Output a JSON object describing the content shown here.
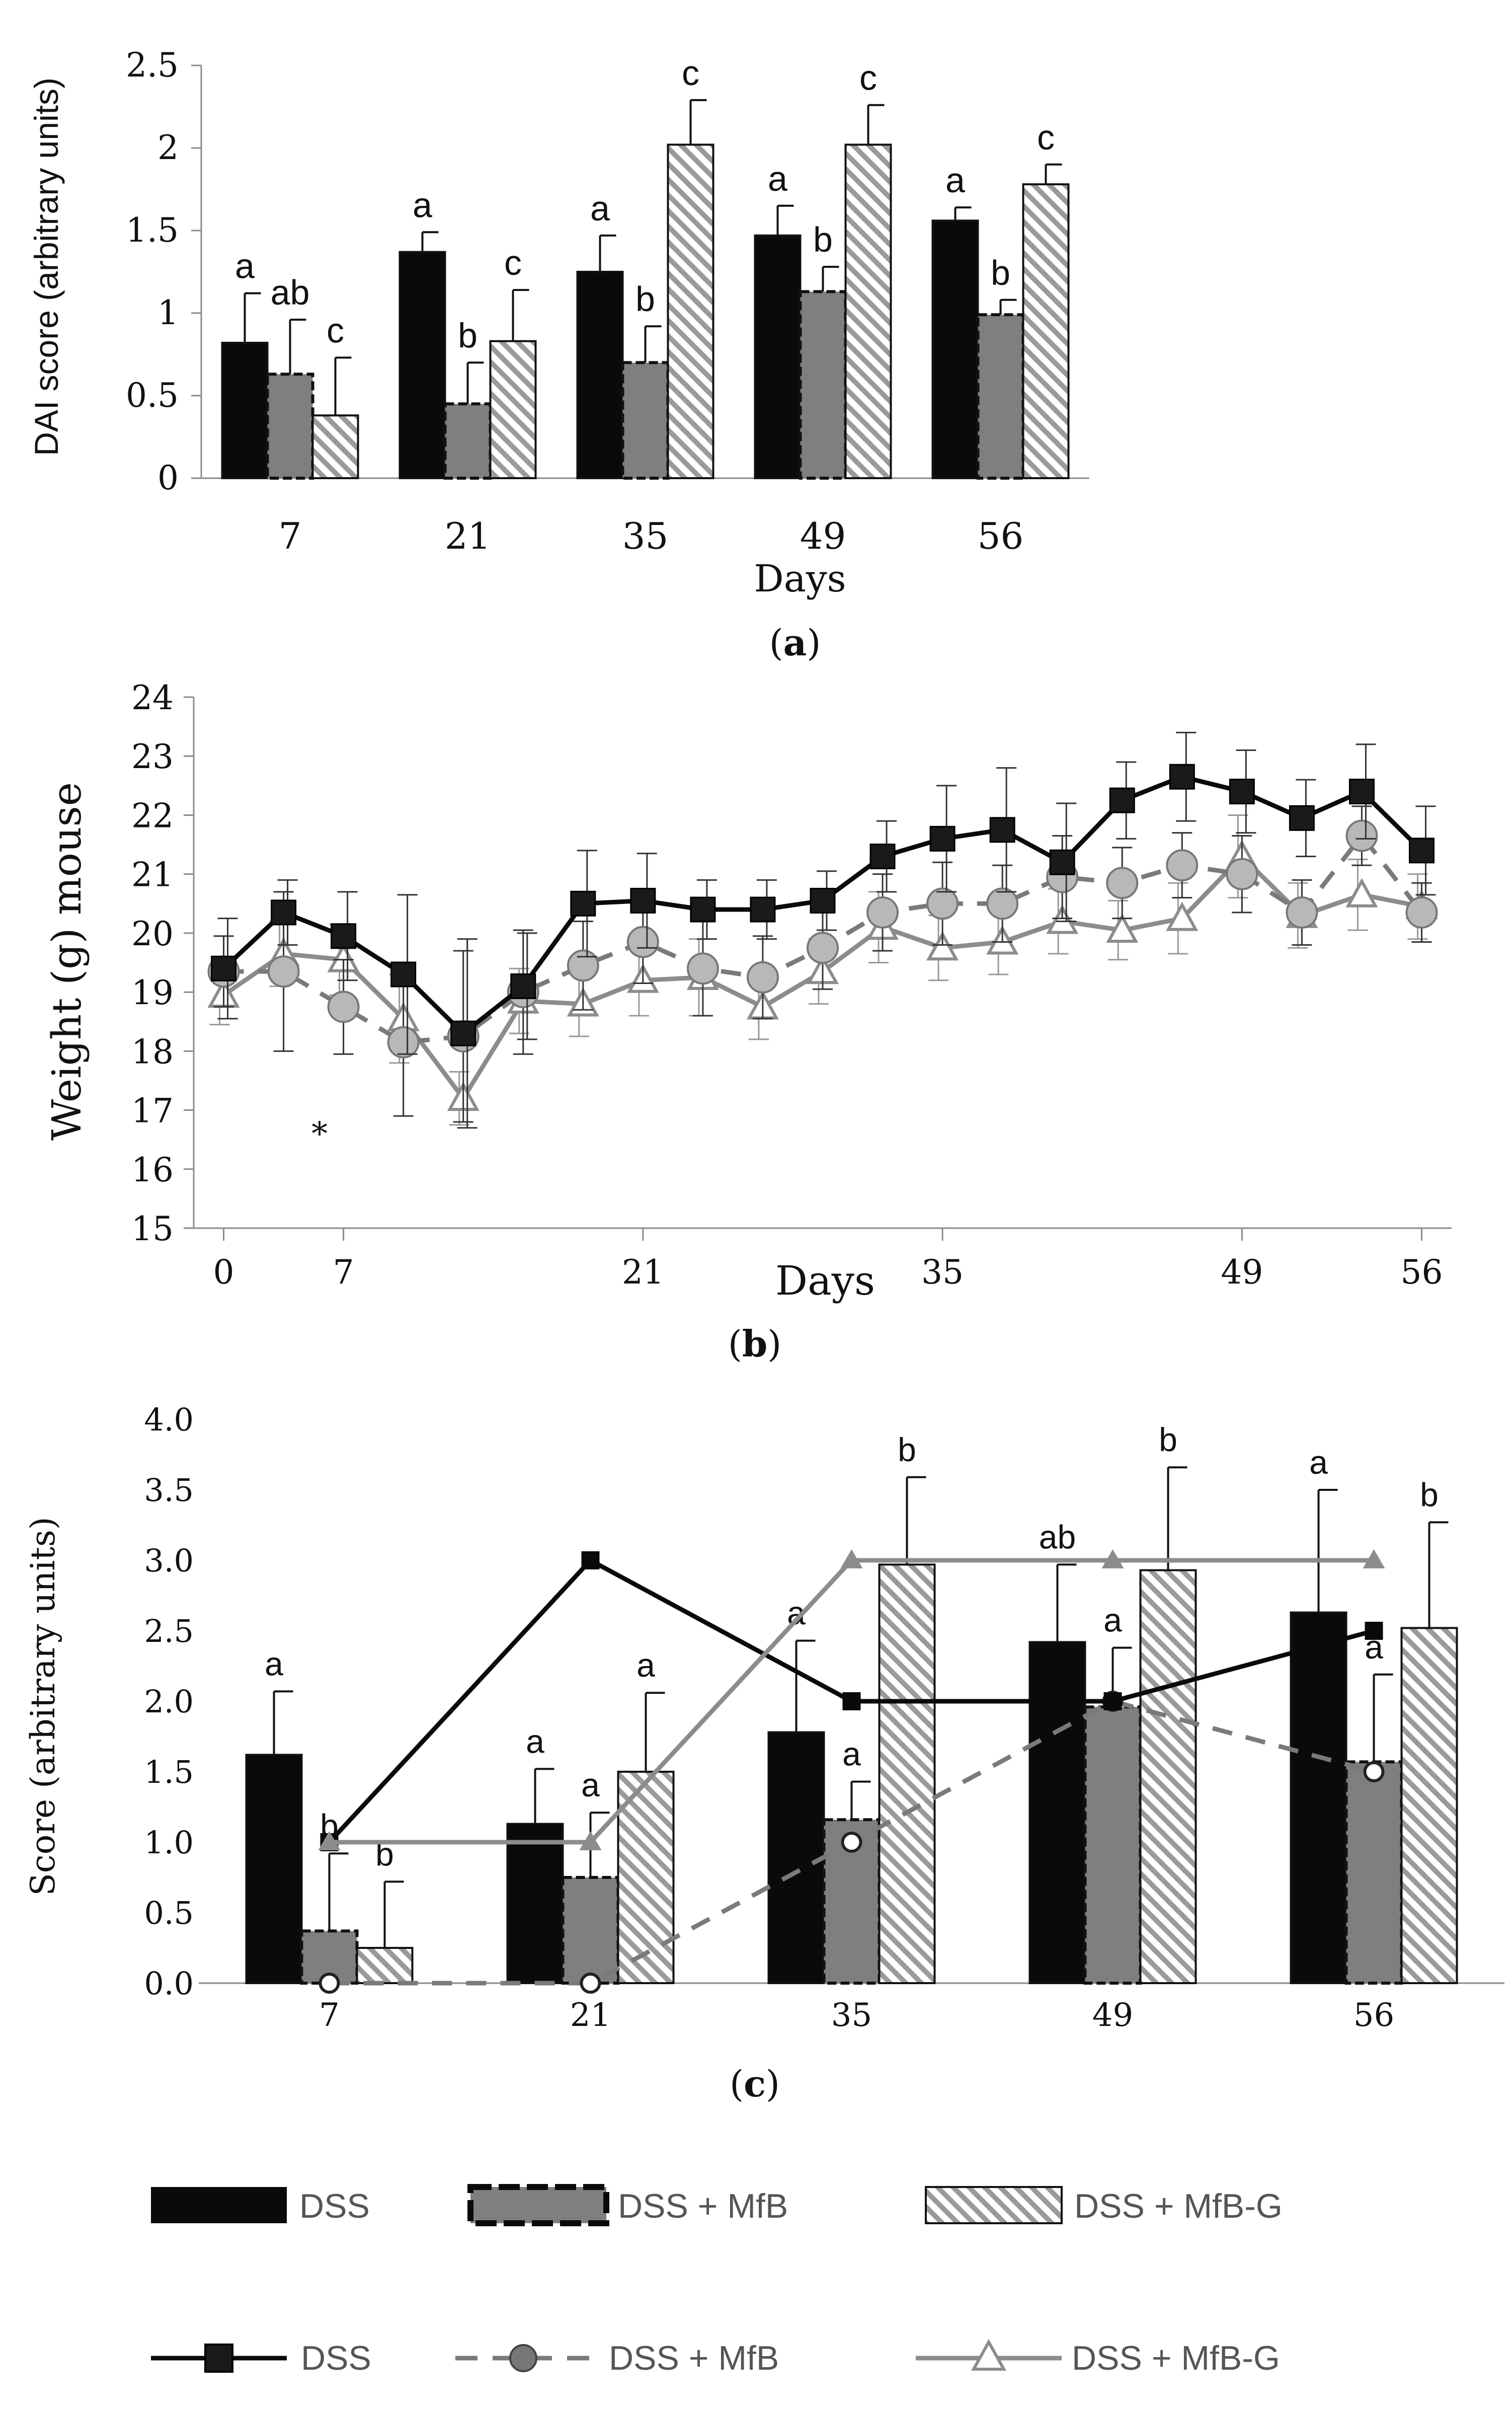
{
  "colors": {
    "dss": "#0a0a0a",
    "dss_mfb": "#7f7f7f",
    "dss_mfb_g_hatch": "#9a9a9a",
    "line_dss": "#0a0a0a",
    "line_dss_mfb": "#7a7a7a",
    "line_dss_mfb_g": "#8c8c8c",
    "axis": "#8a8a8a"
  },
  "chart_data": [
    {
      "id": "a",
      "type": "bar",
      "panel_label": "a",
      "xlabel": "Days",
      "ylabel": "DAI score (arbitrary units)",
      "ylim": [
        0,
        2.5
      ],
      "yticks": [
        0,
        0.5,
        1,
        1.5,
        2,
        2.5
      ],
      "ytick_labels": [
        "0",
        "0.5",
        "1",
        "1.5",
        "2",
        "2.5"
      ],
      "categories": [
        "7",
        "21",
        "35",
        "49",
        "56"
      ],
      "series": [
        {
          "name": "DSS",
          "values": [
            0.82,
            1.37,
            1.25,
            1.47,
            1.56
          ],
          "errors": [
            0.3,
            0.12,
            0.22,
            0.18,
            0.08
          ],
          "letters": [
            "a",
            "a",
            "a",
            "a",
            "a"
          ]
        },
        {
          "name": "DSS + MfB",
          "values": [
            0.63,
            0.45,
            0.7,
            1.13,
            0.99
          ],
          "errors": [
            0.33,
            0.25,
            0.22,
            0.15,
            0.09
          ],
          "letters": [
            "ab",
            "b",
            "b",
            "b",
            "b"
          ]
        },
        {
          "name": "DSS + MfB-G",
          "values": [
            0.38,
            0.83,
            2.02,
            2.02,
            1.78
          ],
          "errors": [
            0.35,
            0.31,
            0.27,
            0.24,
            0.12
          ],
          "letters": [
            "c",
            "c",
            "c",
            "c",
            "c"
          ]
        }
      ]
    },
    {
      "id": "b",
      "type": "line",
      "panel_label": "b",
      "xlabel": "Days",
      "ylabel": "Weight (g) mouse",
      "ylim": [
        15,
        24
      ],
      "yticks": [
        15,
        16,
        17,
        18,
        19,
        20,
        21,
        22,
        23,
        24
      ],
      "ytick_labels": [
        "15",
        "16",
        "17",
        "18",
        "19",
        "20",
        "21",
        "22",
        "23",
        "24"
      ],
      "xlim": [
        -0.5,
        20.5
      ],
      "xtick_positions": [
        0,
        2,
        7,
        12,
        17,
        20
      ],
      "xtick_labels": [
        "0",
        "7",
        "21",
        "35",
        "49",
        "56"
      ],
      "annotation": "*",
      "annotation_x": 1.6,
      "annotation_y": 16.6,
      "series": [
        {
          "name": "DSS",
          "values": [
            19.4,
            20.35,
            19.95,
            19.3,
            18.3,
            19.1,
            20.5,
            20.55,
            20.4,
            20.4,
            20.55,
            21.3,
            21.6,
            21.75,
            21.2,
            22.25,
            22.65,
            22.4,
            21.95,
            22.4,
            21.4
          ],
          "errors": [
            0.85,
            0.55,
            0.75,
            1.35,
            1.6,
            0.9,
            0.9,
            0.8,
            0.5,
            0.5,
            0.5,
            0.6,
            0.9,
            1.05,
            1.0,
            0.65,
            0.75,
            0.7,
            0.65,
            0.8,
            0.75
          ]
        },
        {
          "name": "DSS + MfB",
          "values": [
            19.35,
            19.35,
            18.75,
            18.15,
            18.25,
            19.0,
            19.45,
            19.85,
            19.4,
            19.25,
            19.75,
            20.35,
            20.5,
            20.5,
            20.95,
            20.85,
            21.15,
            21.0,
            20.35,
            21.65,
            20.35
          ],
          "errors": [
            0.6,
            1.35,
            0.8,
            1.25,
            1.45,
            1.05,
            0.75,
            0.7,
            0.8,
            0.7,
            0.7,
            0.65,
            0.7,
            0.65,
            0.7,
            0.6,
            0.55,
            0.65,
            0.55,
            0.5,
            0.5
          ]
        },
        {
          "name": "DSS + MfB-G",
          "values": [
            18.95,
            19.65,
            19.55,
            18.55,
            17.2,
            18.85,
            18.8,
            19.2,
            19.25,
            18.75,
            19.35,
            20.1,
            19.75,
            19.85,
            20.2,
            20.05,
            20.25,
            21.3,
            20.3,
            20.65,
            20.45
          ],
          "errors": [
            0.5,
            0.55,
            0.6,
            0.75,
            0.45,
            0.55,
            0.55,
            0.6,
            0.65,
            0.55,
            0.55,
            0.6,
            0.55,
            0.55,
            0.55,
            0.5,
            0.6,
            0.7,
            0.55,
            0.6,
            0.55
          ]
        }
      ]
    },
    {
      "id": "c",
      "type": "bar",
      "panel_label": "c",
      "xlabel": "",
      "ylabel": "Score (arbitrary units)",
      "ylim": [
        0,
        4
      ],
      "yticks": [
        0,
        0.5,
        1,
        1.5,
        2,
        2.5,
        3,
        3.5,
        4
      ],
      "ytick_labels": [
        "0.0",
        "0.5",
        "1.0",
        "1.5",
        "2.0",
        "2.5",
        "3.0",
        "3.5",
        "4.0"
      ],
      "categories": [
        "7",
        "21",
        "35",
        "49",
        "56"
      ],
      "series": [
        {
          "name": "DSS",
          "values": [
            1.62,
            1.13,
            1.78,
            2.42,
            2.63
          ],
          "errors": [
            0.45,
            0.39,
            0.65,
            0.55,
            0.87
          ],
          "letters": [
            "a",
            "a",
            "a",
            "ab",
            "a"
          ]
        },
        {
          "name": "DSS + MfB",
          "values": [
            0.37,
            0.75,
            1.16,
            1.96,
            1.57
          ],
          "errors": [
            0.55,
            0.46,
            0.27,
            0.42,
            0.62
          ],
          "letters": [
            "b",
            "a",
            "a",
            "a",
            "a"
          ]
        },
        {
          "name": "DSS + MfB-G",
          "values": [
            0.25,
            1.5,
            2.97,
            2.93,
            2.52
          ],
          "errors": [
            0.47,
            0.56,
            0.62,
            0.73,
            0.75
          ],
          "letters": [
            "b",
            "a",
            "b",
            "b",
            "b"
          ]
        }
      ],
      "line_series": [
        {
          "name": "DSS",
          "values": [
            1.0,
            3.0,
            2.0,
            2.0,
            2.5
          ]
        },
        {
          "name": "DSS + MfB",
          "values": [
            0.0,
            0.0,
            1.0,
            2.0,
            1.5
          ]
        },
        {
          "name": "DSS + MfB-G",
          "values": [
            1.0,
            1.0,
            3.0,
            3.0,
            3.0
          ]
        }
      ]
    }
  ],
  "legend": {
    "bars": [
      "DSS",
      "DSS + MfB",
      "DSS + MfB-G"
    ],
    "lines": [
      "DSS",
      "DSS + MfB",
      "DSS + MfB-G"
    ]
  }
}
